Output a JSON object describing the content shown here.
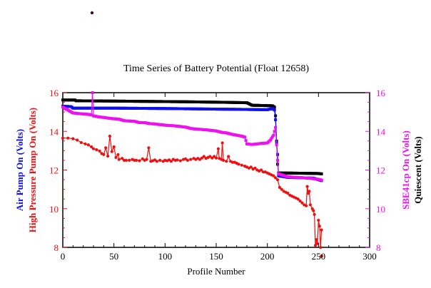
{
  "colors": {
    "air_pump": "#1010e8",
    "high_pressure": "#ee1010",
    "sbe41": "#ee10ee",
    "quiescent": "#000000",
    "stray_dot": "#3a0a28"
  },
  "chart_data": {
    "type": "line",
    "title": "Time Series of Battery Potential (Float 12658)",
    "xlabel": "Profile Number",
    "xlim": [
      0,
      300
    ],
    "ylim": [
      8,
      16
    ],
    "x_ticks": [
      "0",
      "50",
      "100",
      "150",
      "200",
      "250",
      "300"
    ],
    "left_ticks": [
      "8",
      "10",
      "12",
      "14",
      "16"
    ],
    "right_ticks": [
      "8",
      "10",
      "12",
      "14",
      "16"
    ],
    "left_labels": [
      {
        "text": "Air Pump On (Volts)",
        "color": "#1010e8"
      },
      {
        "text": "High Pressure Pump On (Volts)",
        "color": "#ee1010"
      }
    ],
    "right_labels": [
      {
        "text": "SBE41cp On (Volts)",
        "color": "#ee10ee"
      },
      {
        "text": "Quiescent (Volts)",
        "color": "#000000"
      }
    ],
    "grid": false,
    "series": [
      {
        "key": "quiescent",
        "color": "#000000",
        "dense": true,
        "points": [
          [
            0,
            15.62
          ],
          [
            12,
            15.62
          ],
          [
            13,
            15.58
          ],
          [
            40,
            15.57
          ],
          [
            80,
            15.55
          ],
          [
            120,
            15.53
          ],
          [
            160,
            15.5
          ],
          [
            180,
            15.48
          ],
          [
            185,
            15.35
          ],
          [
            200,
            15.33
          ],
          [
            205,
            15.32
          ],
          [
            207,
            15.25
          ],
          [
            208,
            14.8
          ],
          [
            209,
            13.5
          ],
          [
            210,
            12.3
          ],
          [
            211,
            11.85
          ],
          [
            250,
            11.82
          ],
          [
            253,
            11.8
          ]
        ]
      },
      {
        "key": "air_pump",
        "color": "#1010e8",
        "dense": true,
        "points": [
          [
            0,
            15.3
          ],
          [
            8,
            15.28
          ],
          [
            10,
            15.2
          ],
          [
            50,
            15.2
          ],
          [
            100,
            15.18
          ],
          [
            150,
            15.15
          ],
          [
            200,
            15.12
          ],
          [
            205,
            15.18
          ],
          [
            207,
            15.1
          ],
          [
            208,
            14.6
          ],
          [
            209,
            13.4
          ],
          [
            210,
            12.8
          ],
          [
            211,
            11.7
          ],
          [
            220,
            11.62
          ],
          [
            245,
            11.58
          ],
          [
            250,
            11.5
          ],
          [
            253,
            11.45
          ]
        ]
      },
      {
        "key": "sbe41",
        "color": "#ee10ee",
        "dense": true,
        "points": [
          [
            0,
            15.25
          ],
          [
            5,
            15.1
          ],
          [
            10,
            14.95
          ],
          [
            15,
            14.92
          ],
          [
            20,
            14.9
          ],
          [
            25,
            14.88
          ],
          [
            28,
            14.85
          ],
          [
            29,
            16.0
          ],
          [
            30,
            14.8
          ],
          [
            35,
            14.75
          ],
          [
            40,
            14.72
          ],
          [
            45,
            14.68
          ],
          [
            50,
            14.65
          ],
          [
            55,
            14.63
          ],
          [
            60,
            14.55
          ],
          [
            70,
            14.52
          ],
          [
            75,
            14.45
          ],
          [
            80,
            14.45
          ],
          [
            85,
            14.4
          ],
          [
            90,
            14.38
          ],
          [
            95,
            14.35
          ],
          [
            100,
            14.32
          ],
          [
            110,
            14.28
          ],
          [
            120,
            14.22
          ],
          [
            125,
            14.15
          ],
          [
            130,
            14.12
          ],
          [
            140,
            14.08
          ],
          [
            150,
            14.02
          ],
          [
            155,
            13.95
          ],
          [
            160,
            13.92
          ],
          [
            165,
            13.85
          ],
          [
            170,
            13.8
          ],
          [
            175,
            13.75
          ],
          [
            178,
            13.7
          ],
          [
            180,
            13.35
          ],
          [
            185,
            13.32
          ],
          [
            190,
            13.35
          ],
          [
            195,
            13.38
          ],
          [
            200,
            13.4
          ],
          [
            203,
            13.55
          ],
          [
            206,
            13.8
          ],
          [
            208,
            14.2
          ],
          [
            209,
            13.3
          ],
          [
            210,
            12.5
          ],
          [
            211,
            11.8
          ],
          [
            220,
            11.65
          ],
          [
            240,
            11.58
          ],
          [
            250,
            11.52
          ],
          [
            253,
            11.48
          ]
        ]
      },
      {
        "key": "high_pressure",
        "color": "#ee1010",
        "dense": false,
        "points": [
          [
            0,
            13.65
          ],
          [
            5,
            13.65
          ],
          [
            10,
            13.62
          ],
          [
            14,
            13.55
          ],
          [
            18,
            13.42
          ],
          [
            22,
            13.35
          ],
          [
            25,
            13.3
          ],
          [
            28,
            13.2
          ],
          [
            30,
            13.1
          ],
          [
            33,
            13.05
          ],
          [
            36,
            12.98
          ],
          [
            38,
            12.85
          ],
          [
            40,
            12.8
          ],
          [
            42,
            13.15
          ],
          [
            44,
            12.72
          ],
          [
            46,
            13.75
          ],
          [
            48,
            12.95
          ],
          [
            50,
            13.2
          ],
          [
            52,
            12.65
          ],
          [
            54,
            12.8
          ],
          [
            55,
            12.55
          ],
          [
            58,
            12.6
          ],
          [
            60,
            12.5
          ],
          [
            62,
            12.5
          ],
          [
            65,
            12.5
          ],
          [
            68,
            12.55
          ],
          [
            70,
            12.5
          ],
          [
            72,
            12.5
          ],
          [
            75,
            12.48
          ],
          [
            78,
            12.58
          ],
          [
            80,
            12.5
          ],
          [
            82,
            12.55
          ],
          [
            84,
            13.15
          ],
          [
            86,
            12.45
          ],
          [
            88,
            12.48
          ],
          [
            90,
            12.52
          ],
          [
            92,
            12.45
          ],
          [
            95,
            12.5
          ],
          [
            98,
            12.45
          ],
          [
            100,
            12.5
          ],
          [
            102,
            12.48
          ],
          [
            104,
            12.52
          ],
          [
            106,
            12.45
          ],
          [
            108,
            12.55
          ],
          [
            110,
            12.5
          ],
          [
            112,
            12.52
          ],
          [
            115,
            12.48
          ],
          [
            118,
            12.55
          ],
          [
            120,
            12.58
          ],
          [
            122,
            12.5
          ],
          [
            125,
            12.55
          ],
          [
            128,
            12.6
          ],
          [
            130,
            12.55
          ],
          [
            132,
            12.6
          ],
          [
            134,
            12.55
          ],
          [
            136,
            12.62
          ],
          [
            138,
            12.7
          ],
          [
            140,
            12.6
          ],
          [
            142,
            12.65
          ],
          [
            144,
            12.7
          ],
          [
            146,
            12.62
          ],
          [
            148,
            12.7
          ],
          [
            150,
            12.62
          ],
          [
            152,
            13.1
          ],
          [
            153,
            12.6
          ],
          [
            155,
            12.55
          ],
          [
            156,
            13.4
          ],
          [
            157,
            12.5
          ],
          [
            160,
            12.45
          ],
          [
            162,
            12.7
          ],
          [
            164,
            12.45
          ],
          [
            166,
            12.4
          ],
          [
            168,
            12.4
          ],
          [
            170,
            12.35
          ],
          [
            172,
            12.3
          ],
          [
            175,
            12.25
          ],
          [
            178,
            12.2
          ],
          [
            180,
            12.15
          ],
          [
            182,
            12.1
          ],
          [
            184,
            12.15
          ],
          [
            186,
            12.05
          ],
          [
            188,
            12.1
          ],
          [
            190,
            12.0
          ],
          [
            192,
            11.95
          ],
          [
            194,
            12.0
          ],
          [
            196,
            11.9
          ],
          [
            198,
            11.9
          ],
          [
            200,
            11.85
          ],
          [
            202,
            11.8
          ],
          [
            204,
            11.75
          ],
          [
            206,
            11.7
          ],
          [
            208,
            11.6
          ],
          [
            210,
            11.5
          ],
          [
            212,
            11.1
          ],
          [
            214,
            11.0
          ],
          [
            216,
            10.9
          ],
          [
            218,
            10.85
          ],
          [
            220,
            10.8
          ],
          [
            222,
            10.7
          ],
          [
            224,
            10.65
          ],
          [
            226,
            10.6
          ],
          [
            228,
            10.55
          ],
          [
            230,
            10.5
          ],
          [
            232,
            10.4
          ],
          [
            234,
            10.3
          ],
          [
            236,
            10.2
          ],
          [
            238,
            10.15
          ],
          [
            239,
            11.15
          ],
          [
            240,
            10.8
          ],
          [
            241,
            10.9
          ],
          [
            242,
            10.2
          ],
          [
            244,
            10.0
          ],
          [
            245,
            9.9
          ],
          [
            246,
            9.7
          ],
          [
            247,
            8.1
          ],
          [
            248,
            8.4
          ],
          [
            249,
            8.2
          ],
          [
            250,
            9.4
          ],
          [
            251,
            9.1
          ],
          [
            252,
            8.0
          ],
          [
            253,
            8.9
          ]
        ]
      }
    ],
    "markers": [
      {
        "key": "red-outlier",
        "x": 253,
        "y": 7.55,
        "color": "#ee1010"
      }
    ]
  }
}
